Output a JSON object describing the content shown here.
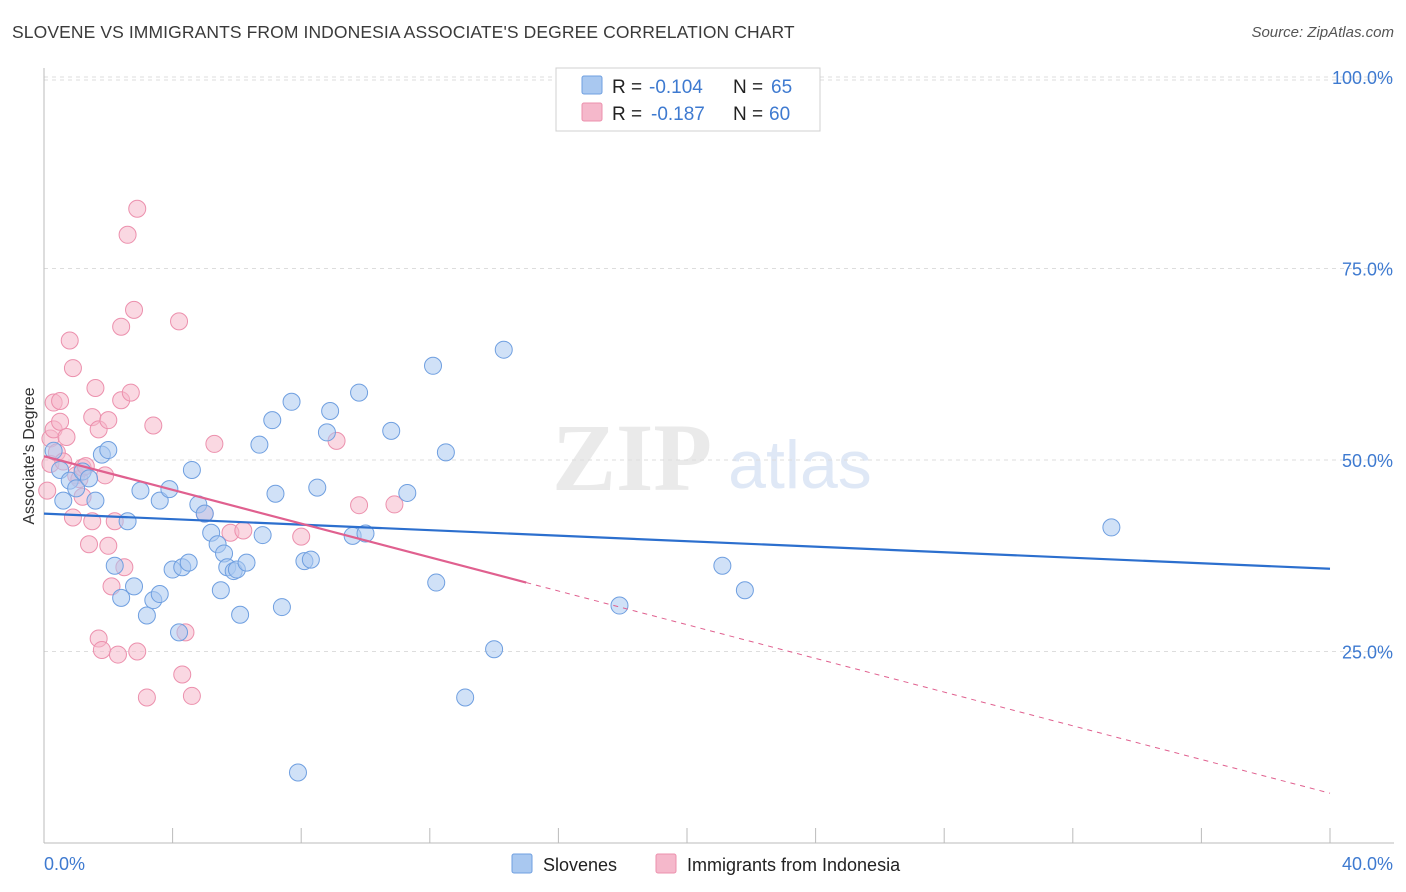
{
  "header": {
    "title": "SLOVENE VS IMMIGRANTS FROM INDONESIA ASSOCIATE'S DEGREE CORRELATION CHART",
    "source": "Source: ZipAtlas.com"
  },
  "colors": {
    "blue_fill": "#a9c8f0",
    "blue_stroke": "#6f9fe0",
    "blue_line": "#2c6fce",
    "pink_fill": "#f5b8cb",
    "pink_stroke": "#ec90ad",
    "pink_line": "#e0608f",
    "axis_label": "#3e7ad0",
    "grid": "#dddddd"
  },
  "watermark": {
    "zip": "ZIP",
    "atlas": "atlas"
  },
  "chart_data": {
    "type": "scatter",
    "title": "SLOVENE VS IMMIGRANTS FROM INDONESIA ASSOCIATE'S DEGREE CORRELATION CHART",
    "xlabel": "",
    "ylabel": "Associate's Degree",
    "xlim": [
      0,
      40
    ],
    "ylim": [
      0,
      100
    ],
    "x_tick_labels": [
      "0.0%",
      "40.0%"
    ],
    "y_ticks": [
      25,
      50,
      75,
      100
    ],
    "y_tick_labels": [
      "25.0%",
      "50.0%",
      "75.0%",
      "100.0%"
    ],
    "legend": {
      "position": "top-center",
      "entries": [
        {
          "r_label": "R =",
          "r_value": "-0.104",
          "n_label": "N =",
          "n_value": "65"
        },
        {
          "r_label": "R =",
          "r_value": "-0.187",
          "n_label": "N =",
          "n_value": "60"
        }
      ]
    },
    "bottom_legend": [
      "Slovenes",
      "Immigrants from Indonesia"
    ],
    "series": [
      {
        "name": "Slovenes",
        "color": "#a9c8f0",
        "trend": {
          "x": [
            0,
            40
          ],
          "y": [
            43.0,
            35.8
          ],
          "dashed_from": null
        },
        "points": [
          [
            0.3,
            51.2
          ],
          [
            0.5,
            48.7
          ],
          [
            0.6,
            44.7
          ],
          [
            0.8,
            47.3
          ],
          [
            1.0,
            46.3
          ],
          [
            1.2,
            48.5
          ],
          [
            1.4,
            47.6
          ],
          [
            1.6,
            44.7
          ],
          [
            1.8,
            50.7
          ],
          [
            2.0,
            51.3
          ],
          [
            2.2,
            36.2
          ],
          [
            2.4,
            32.0
          ],
          [
            2.6,
            42.0
          ],
          [
            2.8,
            33.5
          ],
          [
            3.0,
            46.0
          ],
          [
            3.2,
            29.7
          ],
          [
            3.4,
            31.7
          ],
          [
            3.6,
            32.5
          ],
          [
            3.6,
            44.7
          ],
          [
            3.9,
            46.2
          ],
          [
            4.0,
            35.7
          ],
          [
            4.2,
            27.5
          ],
          [
            4.3,
            36.0
          ],
          [
            4.5,
            36.6
          ],
          [
            4.6,
            48.7
          ],
          [
            4.8,
            44.2
          ],
          [
            5.0,
            43.0
          ],
          [
            5.2,
            40.5
          ],
          [
            5.4,
            39.0
          ],
          [
            5.5,
            33.0
          ],
          [
            5.6,
            37.8
          ],
          [
            5.7,
            36.0
          ],
          [
            5.9,
            35.5
          ],
          [
            6.0,
            35.7
          ],
          [
            6.1,
            29.8
          ],
          [
            6.3,
            36.6
          ],
          [
            6.7,
            52.0
          ],
          [
            6.8,
            40.2
          ],
          [
            7.1,
            55.2
          ],
          [
            7.2,
            45.6
          ],
          [
            7.4,
            30.8
          ],
          [
            7.7,
            57.6
          ],
          [
            7.9,
            9.2
          ],
          [
            8.1,
            36.8
          ],
          [
            8.3,
            37.0
          ],
          [
            8.5,
            46.4
          ],
          [
            8.8,
            53.6
          ],
          [
            8.9,
            56.4
          ],
          [
            9.6,
            40.1
          ],
          [
            9.8,
            58.8
          ],
          [
            10.0,
            40.4
          ],
          [
            10.8,
            53.8
          ],
          [
            11.3,
            45.7
          ],
          [
            12.1,
            62.3
          ],
          [
            12.5,
            51.0
          ],
          [
            12.2,
            34.0
          ],
          [
            13.1,
            19.0
          ],
          [
            14.0,
            25.3
          ],
          [
            14.3,
            64.4
          ],
          [
            17.9,
            31.0
          ],
          [
            21.1,
            36.2
          ],
          [
            21.8,
            33.0
          ],
          [
            33.2,
            41.2
          ]
        ]
      },
      {
        "name": "Immigrants from Indonesia",
        "color": "#f5b8cb",
        "trend": {
          "x": [
            0,
            40
          ],
          "y": [
            50.5,
            6.5
          ],
          "solid_until": 15
        },
        "points": [
          [
            0.1,
            46.0
          ],
          [
            0.2,
            49.5
          ],
          [
            0.2,
            52.8
          ],
          [
            0.3,
            54.0
          ],
          [
            0.3,
            57.5
          ],
          [
            0.4,
            51.0
          ],
          [
            0.5,
            57.7
          ],
          [
            0.5,
            55.0
          ],
          [
            0.6,
            49.8
          ],
          [
            0.7,
            53.0
          ],
          [
            0.8,
            65.6
          ],
          [
            0.9,
            62.0
          ],
          [
            0.9,
            42.5
          ],
          [
            1.0,
            48.0
          ],
          [
            1.1,
            47.5
          ],
          [
            1.2,
            49.0
          ],
          [
            1.2,
            45.2
          ],
          [
            1.3,
            49.2
          ],
          [
            1.4,
            39.0
          ],
          [
            1.5,
            55.6
          ],
          [
            1.5,
            42.0
          ],
          [
            1.6,
            59.4
          ],
          [
            1.7,
            26.7
          ],
          [
            1.7,
            54.0
          ],
          [
            1.8,
            25.2
          ],
          [
            1.9,
            48.0
          ],
          [
            2.0,
            38.8
          ],
          [
            2.0,
            55.2
          ],
          [
            2.1,
            33.5
          ],
          [
            2.2,
            42.0
          ],
          [
            2.3,
            24.6
          ],
          [
            2.4,
            57.8
          ],
          [
            2.4,
            67.4
          ],
          [
            2.5,
            36.0
          ],
          [
            2.6,
            79.4
          ],
          [
            2.7,
            58.8
          ],
          [
            2.8,
            69.6
          ],
          [
            2.9,
            25.0
          ],
          [
            2.9,
            82.8
          ],
          [
            3.2,
            19.0
          ],
          [
            3.4,
            54.5
          ],
          [
            4.2,
            68.1
          ],
          [
            4.3,
            22.0
          ],
          [
            4.4,
            27.5
          ],
          [
            4.6,
            19.2
          ],
          [
            5.0,
            43.0
          ],
          [
            5.3,
            52.1
          ],
          [
            5.8,
            40.5
          ],
          [
            6.2,
            40.8
          ],
          [
            8.0,
            40.0
          ],
          [
            9.1,
            52.5
          ],
          [
            9.8,
            44.1
          ],
          [
            10.9,
            44.2
          ]
        ]
      }
    ]
  }
}
